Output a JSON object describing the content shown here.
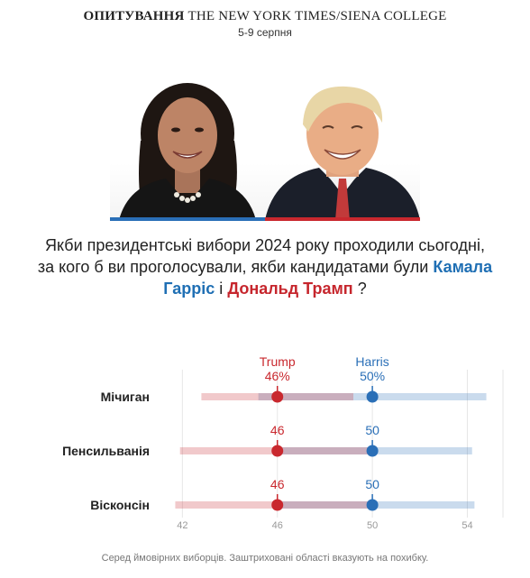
{
  "header": {
    "poll_prefix": "ОПИТУВАННЯ",
    "poll_source": "THE NEW YORK TIMES/SIENA COLLEGE",
    "date": "5-9 серпня"
  },
  "question": {
    "text_before": "Якби президентські вибори 2024 року проходили сьогодні, за кого б ви проголосували, якби кандидатами були",
    "harris_name": "Камала Гарріс",
    "connector": "і",
    "trump_name": "Дональд Трамп",
    "text_after": "?"
  },
  "footnote": "Серед ймовірних виборців. Заштриховані області вказують на похибку.",
  "colors": {
    "harris": "#2a6fb7",
    "trump": "#c9282e"
  },
  "chart_data": {
    "type": "scatter",
    "xlim": [
      41,
      55.5
    ],
    "x_ticks": [
      42,
      46,
      50,
      54
    ],
    "categories": [
      "Мічиган",
      "Пенсильванія",
      "Вісконсін"
    ],
    "series": [
      {
        "name": "Trump",
        "values": [
          46,
          46,
          46
        ],
        "labels": [
          "46%",
          "46",
          "46"
        ],
        "margin_low": [
          42.8,
          41.9,
          41.7
        ],
        "margin_high": [
          49.2,
          50.1,
          50.1
        ]
      },
      {
        "name": "Harris",
        "values": [
          50,
          50,
          50
        ],
        "labels": [
          "50%",
          "50",
          "50"
        ],
        "margin_low": [
          45.2,
          45.9,
          45.8
        ],
        "margin_high": [
          54.8,
          54.2,
          54.3
        ]
      }
    ],
    "grid": true
  }
}
